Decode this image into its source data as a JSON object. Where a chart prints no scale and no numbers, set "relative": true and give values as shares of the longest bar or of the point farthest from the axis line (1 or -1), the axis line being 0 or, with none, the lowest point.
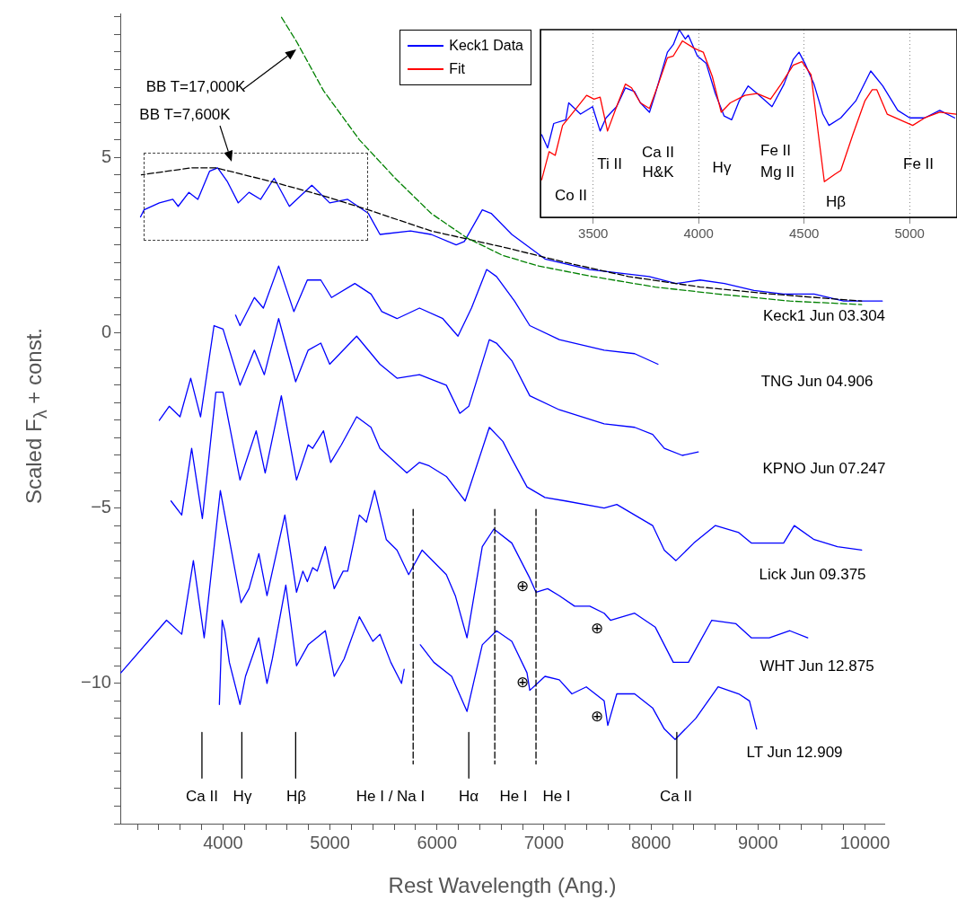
{
  "chart_data": [
    {
      "type": "line",
      "xlabel": "Rest Wavelength (Ang.)",
      "ylabel": "Scaled F$_{λ}$ + const.",
      "xlim": [
        3040,
        10180
      ],
      "ylim": [
        -14,
        9.1
      ],
      "xticks": [
        {
          "value": 3200,
          "label": null
        },
        {
          "value": 3400,
          "label": null
        },
        {
          "value": 3600,
          "label": null
        },
        {
          "value": 3800,
          "label": null
        },
        4000,
        {
          "value": 4200,
          "label": null
        },
        {
          "value": 4400,
          "label": null
        },
        {
          "value": 4600,
          "label": null
        },
        {
          "value": 4800,
          "label": null
        },
        5000,
        {
          "value": 5200,
          "label": null
        },
        {
          "value": 5400,
          "label": null
        },
        {
          "value": 5600,
          "label": null
        },
        {
          "value": 5800,
          "label": null
        },
        6000,
        {
          "value": 6200,
          "label": null
        },
        {
          "value": 6400,
          "label": null
        },
        {
          "value": 6600,
          "label": null
        },
        {
          "value": 6800,
          "label": null
        },
        7000,
        {
          "value": 7200,
          "label": null
        },
        {
          "value": 7400,
          "label": null
        },
        {
          "value": 7600,
          "label": null
        },
        {
          "value": 7800,
          "label": null
        },
        8000,
        {
          "value": 8200,
          "label": null
        },
        {
          "value": 8400,
          "label": null
        },
        {
          "value": 8600,
          "label": null
        },
        {
          "value": 8800,
          "label": null
        },
        9000,
        {
          "value": 9200,
          "label": null
        },
        {
          "value": 9400,
          "label": null
        },
        {
          "value": 9600,
          "label": null
        },
        {
          "value": 9800,
          "label": null
        },
        10000
      ],
      "yticks": [
        {
          "value": -14,
          "label": null
        },
        {
          "value": -13.5,
          "label": null
        },
        {
          "value": -13,
          "label": null
        },
        {
          "value": -12.5,
          "label": null
        },
        {
          "value": -12,
          "label": null
        },
        {
          "value": -11.5,
          "label": null
        },
        {
          "value": -11,
          "label": null
        },
        {
          "value": -10.5,
          "label": null
        },
        {
          "value": -10,
          "label": "−10"
        },
        {
          "value": -9.5,
          "label": null
        },
        {
          "value": -9,
          "label": null
        },
        {
          "value": -8.5,
          "label": null
        },
        {
          "value": -8,
          "label": null
        },
        {
          "value": -7.5,
          "label": null
        },
        {
          "value": -7,
          "label": null
        },
        {
          "value": -6.5,
          "label": null
        },
        {
          "value": -6,
          "label": null
        },
        {
          "value": -5.5,
          "label": null
        },
        {
          "value": -5,
          "label": "−5"
        },
        {
          "value": -4.5,
          "label": null
        },
        {
          "value": -4,
          "label": null
        },
        {
          "value": -3.5,
          "label": null
        },
        {
          "value": -3,
          "label": null
        },
        {
          "value": -2.5,
          "label": null
        },
        {
          "value": -2,
          "label": null
        },
        {
          "value": -1.5,
          "label": null
        },
        {
          "value": -1,
          "label": null
        },
        {
          "value": -0.5,
          "label": null
        },
        0,
        {
          "value": 0.5,
          "label": null
        },
        {
          "value": 1,
          "label": null
        },
        {
          "value": 1.5,
          "label": null
        },
        {
          "value": 2,
          "label": null
        },
        {
          "value": 2.5,
          "label": null
        },
        {
          "value": 3,
          "label": null
        },
        {
          "value": 3.5,
          "label": null
        },
        {
          "value": 4,
          "label": null
        },
        {
          "value": 4.5,
          "label": null
        },
        5,
        {
          "value": 5.5,
          "label": null
        },
        {
          "value": 6,
          "label": null
        },
        {
          "value": 6.5,
          "label": null
        },
        {
          "value": 7,
          "label": null
        },
        {
          "value": 7.5,
          "label": null
        },
        {
          "value": 8,
          "label": null
        },
        {
          "value": 8.5,
          "label": null
        },
        {
          "value": 9,
          "label": null
        }
      ],
      "series": [
        {
          "color": "#0000ff",
          "x": [
            3229,
            3262,
            3405,
            3531,
            3581,
            3681,
            3765,
            3874,
            3950,
            4042,
            4142,
            4243,
            4352,
            4478,
            4620,
            4830,
            4997,
            5165,
            5358,
            5467,
            5752,
            5945,
            6179,
            6255,
            6423,
            6506,
            6699,
            7009,
            7428,
            7982,
            8233,
            8459,
            8686,
            8962,
            9239,
            9524,
            9800,
            10161
          ],
          "values": [
            3.3,
            3.5,
            3.7,
            3.8,
            3.6,
            4.0,
            3.8,
            4.6,
            4.7,
            4.3,
            3.7,
            4.0,
            3.8,
            4.4,
            3.6,
            4.2,
            3.7,
            3.8,
            3.4,
            2.8,
            2.9,
            2.8,
            2.5,
            2.6,
            3.5,
            3.4,
            2.8,
            2.1,
            1.8,
            1.6,
            1.4,
            1.5,
            1.4,
            1.2,
            1.1,
            1.1,
            0.9,
            0.9
          ]
        },
        {
          "color": "#0000ff",
          "x": [
            4117,
            4159,
            4293,
            4377,
            4520,
            4662,
            4788,
            4914,
            5014,
            5232,
            5383,
            5484,
            5626,
            5836,
            6054,
            6196,
            6322,
            6464,
            6556,
            6724,
            6867,
            7143,
            7562,
            7847,
            8065
          ],
          "values": [
            0.5,
            0.2,
            1.0,
            0.7,
            1.9,
            0.6,
            1.5,
            1.5,
            1.0,
            1.4,
            1.1,
            0.6,
            0.4,
            0.7,
            0.4,
            -0.1,
            0.7,
            1.8,
            1.6,
            0.9,
            0.2,
            -0.2,
            -0.5,
            -0.6,
            -0.9
          ]
        },
        {
          "color": "#0000ff",
          "x": [
            3405,
            3497,
            3598,
            3698,
            3790,
            3916,
            4000,
            4159,
            4293,
            4386,
            4520,
            4679,
            4796,
            4914,
            4997,
            5249,
            5467,
            5626,
            5836,
            6087,
            6213,
            6297,
            6489,
            6556,
            6699,
            6867,
            7143,
            7562,
            7847,
            8015,
            8124,
            8292,
            8442
          ],
          "values": [
            -2.5,
            -2.1,
            -2.4,
            -1.3,
            -2.4,
            0.2,
            0.1,
            -1.5,
            -0.5,
            -1.2,
            0.4,
            -1.4,
            -0.5,
            -0.3,
            -0.9,
            -0.1,
            -0.9,
            -1.3,
            -1.2,
            -1.5,
            -2.3,
            -2.1,
            -0.2,
            -0.3,
            -0.8,
            -1.8,
            -2.2,
            -2.6,
            -2.7,
            -2.9,
            -3.3,
            -3.5,
            -3.4
          ]
        },
        {
          "color": "#0000ff",
          "x": [
            3514,
            3614,
            3707,
            3807,
            3933,
            4000,
            4159,
            4310,
            4394,
            4545,
            4687,
            4796,
            4838,
            4939,
            5006,
            5106,
            5249,
            5383,
            5467,
            5718,
            5836,
            5928,
            6087,
            6263,
            6489,
            6615,
            6699,
            6841,
            7009,
            7202,
            7562,
            7680,
            8015,
            8124,
            8233,
            8400,
            8602,
            8820,
            8937,
            9239,
            9339,
            9524,
            9742,
            9968
          ],
          "values": [
            -4.8,
            -5.2,
            -3.3,
            -5.3,
            -1.7,
            -1.7,
            -4.2,
            -2.8,
            -4.0,
            -1.8,
            -4.2,
            -3.2,
            -3.3,
            -2.8,
            -3.7,
            -3.2,
            -2.4,
            -2.7,
            -3.3,
            -4.0,
            -3.7,
            -3.8,
            -4.1,
            -4.8,
            -2.7,
            -3.1,
            -3.6,
            -4.4,
            -4.7,
            -4.8,
            -5.0,
            -4.9,
            -5.5,
            -6.2,
            -6.5,
            -6.0,
            -5.5,
            -5.7,
            -6.0,
            -6.0,
            -5.5,
            -5.9,
            -6.1,
            -6.2
          ]
        },
        {
          "color": "#0000ff",
          "x": [
            3045,
            3472,
            3614,
            3723,
            3824,
            3975,
            4168,
            4243,
            4335,
            4411,
            4578,
            4687,
            4746,
            4788,
            4838,
            4880,
            4956,
            5039,
            5123,
            5165,
            5274,
            5341,
            5417,
            5526,
            5626,
            5735,
            5861,
            6087,
            6171,
            6280,
            6423,
            6531,
            6699,
            6867,
            6925,
            7034,
            7143,
            7286,
            7428,
            7562,
            7621,
            7847,
            8040,
            8208,
            8350,
            8568,
            8794,
            8937,
            9105,
            9297,
            9465
          ],
          "values": [
            -9.7,
            -8.2,
            -8.6,
            -6.5,
            -8.7,
            -4.5,
            -7.7,
            -7.3,
            -6.3,
            -7.5,
            -5.2,
            -7.4,
            -6.8,
            -7.1,
            -6.7,
            -6.8,
            -6.1,
            -7.3,
            -6.8,
            -6.8,
            -5.2,
            -5.4,
            -4.5,
            -5.9,
            -6.2,
            -6.9,
            -6.2,
            -6.9,
            -7.5,
            -8.7,
            -6.1,
            -5.6,
            -6.0,
            -7.0,
            -7.4,
            -7.3,
            -7.5,
            -7.8,
            -7.8,
            -8.0,
            -8.2,
            -8.0,
            -8.4,
            -9.4,
            -9.4,
            -8.2,
            -8.3,
            -8.7,
            -8.7,
            -8.5,
            -8.7
          ]
        },
        {
          "color": "#0000ff",
          "x": [
            3966,
            3992,
            4017,
            4059,
            4159,
            4210,
            4335,
            4411,
            4461,
            4587,
            4687,
            4796,
            4956,
            5039,
            5132,
            5274,
            5400,
            5467,
            5568,
            5668,
            5693,
            5760,
            5844,
            5970,
            6137,
            6280,
            6423,
            6556,
            6699,
            6841,
            6867,
            7009,
            7143,
            7261,
            7395,
            7562,
            7596,
            7680,
            7847,
            8015,
            8124,
            8225,
            8418,
            8627,
            8820,
            8920,
            8987
          ],
          "values": [
            -10.6,
            -8.2,
            -8.5,
            -9.4,
            -10.6,
            -9.8,
            -8.7,
            -10.0,
            -9.3,
            -7.2,
            -9.5,
            -8.9,
            -8.5,
            -9.8,
            -9.3,
            -8.1,
            -8.8,
            -8.6,
            -9.4,
            -10.0,
            -9.6,
            null,
            -8.9,
            -9.4,
            -9.8,
            -10.8,
            -8.9,
            -8.5,
            -8.8,
            -9.7,
            -10.2,
            -9.8,
            -9.9,
            -10.3,
            -10.1,
            -10.5,
            -11.2,
            -10.3,
            -10.3,
            -10.7,
            -11.3,
            -11.6,
            -11.0,
            -10.1,
            -10.3,
            -10.5,
            -11.3
          ]
        },
        {
          "color": "#000000",
          "line_style": "dashed",
          "x": [
            3237,
            3707,
            3933,
            4461,
            4939,
            5358,
            5945,
            6674,
            7202,
            7789,
            8459,
            9130,
            9968
          ],
          "values": [
            4.5,
            4.7,
            4.7,
            4.3,
            3.9,
            3.5,
            2.9,
            2.4,
            2.0,
            1.6,
            1.3,
            1.1,
            0.9
          ]
        },
        {
          "color": "#008000",
          "line_style": "dashed",
          "x": [
            4545,
            4687,
            4939,
            5274,
            5610,
            5945,
            6280,
            6615,
            6950,
            7453,
            8040,
            8627,
            9297,
            9968
          ],
          "values": [
            9.0,
            8.3,
            6.9,
            5.5,
            4.4,
            3.4,
            2.7,
            2.2,
            1.9,
            1.6,
            1.3,
            1.1,
            0.9,
            0.8
          ]
        },
        {
          "color": "#000000",
          "x": [
            3803,
            3803
          ],
          "values": [
            -11.4,
            -12.7
          ]
        },
        {
          "color": "#000000",
          "x": [
            4176,
            4176
          ],
          "values": [
            -11.4,
            -12.7
          ]
        },
        {
          "color": "#000000",
          "x": [
            4679,
            4679
          ],
          "values": [
            -11.4,
            -12.7
          ]
        },
        {
          "color": "#000000",
          "x": [
            6297,
            6297
          ],
          "values": [
            -11.4,
            -12.7
          ]
        },
        {
          "color": "#000000",
          "x": [
            8241,
            8241
          ],
          "values": [
            -11.4,
            -12.7
          ]
        },
        {
          "color": "#000000",
          "line_style": "dashed",
          "x": [
            5777,
            5777
          ],
          "values": [
            -5.0,
            -12.3
          ]
        },
        {
          "color": "#000000",
          "line_style": "dashed",
          "x": [
            6540,
            6540
          ],
          "values": [
            -5.0,
            -12.3
          ]
        },
        {
          "color": "#000000",
          "line_style": "dashed",
          "x": [
            6925,
            6925
          ],
          "values": [
            -5.0,
            -12.3
          ]
        }
      ],
      "annotations": [
        "BB T=17,000K",
        "BB T=7,600K",
        "Keck1 Jun 03.304",
        "TNG Jun 04.906",
        "KPNO Jun 07.247",
        "Lick Jun 09.375",
        "WHT Jun 12.875",
        "LT Jun 12.909",
        "⊕",
        "⊕",
        "⊕",
        "⊕",
        "Ca II",
        "Hγ",
        "Hβ",
        "He I / Na I",
        "Hα",
        "He I",
        "He I",
        "Ca II"
      ]
    },
    {
      "type": "line",
      "relative": true,
      "xlim": [
        3250,
        5225
      ],
      "xticks": [
        3500,
        4000,
        4500,
        5000
      ],
      "grid": "x",
      "legend": "left",
      "series": [
        {
          "name": "Keck1 Data",
          "color": "#0000ff",
          "x": [
            3256,
            3284,
            3313,
            3370,
            3384,
            3440,
            3497,
            3533,
            3561,
            3611,
            3653,
            3696,
            3724,
            3767,
            3795,
            3852,
            3880,
            3908,
            3937,
            3951,
            3994,
            4036,
            4079,
            4121,
            4157,
            4192,
            4235,
            4277,
            4348,
            4405,
            4448,
            4476,
            4504,
            4547,
            4589,
            4618,
            4674,
            4745,
            4816,
            4873,
            4944,
            5001,
            5072,
            5143,
            5214
          ],
          "values": [
            0.44,
            0.37,
            0.5,
            0.52,
            0.61,
            0.55,
            0.59,
            0.46,
            0.53,
            0.59,
            0.69,
            0.67,
            0.61,
            0.56,
            0.66,
            0.88,
            0.92,
            1.0,
            0.95,
            0.97,
            0.86,
            0.82,
            0.66,
            0.54,
            0.52,
            0.62,
            0.7,
            0.66,
            0.59,
            0.71,
            0.84,
            0.88,
            0.82,
            0.71,
            0.55,
            0.49,
            0.53,
            0.62,
            0.78,
            0.7,
            0.57,
            0.53,
            0.53,
            0.57,
            0.53
          ]
        },
        {
          "name": "Fit",
          "color": "#ff0000",
          "x": [
            3256,
            3291,
            3320,
            3355,
            3398,
            3469,
            3504,
            3533,
            3568,
            3611,
            3653,
            3682,
            3724,
            3767,
            3809,
            3852,
            3880,
            3923,
            3980,
            4022,
            4065,
            4107,
            4150,
            4220,
            4277,
            4341,
            4391,
            4448,
            4490,
            4533,
            4568,
            4596,
            4646,
            4674,
            4731,
            4788,
            4823,
            4845,
            4894,
            5015,
            5072,
            5143,
            5221
          ],
          "values": [
            0.2,
            0.35,
            0.33,
            0.49,
            0.55,
            0.65,
            0.63,
            0.64,
            0.46,
            0.59,
            0.71,
            0.69,
            0.61,
            0.58,
            0.71,
            0.85,
            0.86,
            0.94,
            0.9,
            0.88,
            0.75,
            0.56,
            0.61,
            0.65,
            0.66,
            0.63,
            0.71,
            0.81,
            0.83,
            0.76,
            0.44,
            0.19,
            0.23,
            0.25,
            0.44,
            0.62,
            0.68,
            0.68,
            0.55,
            0.49,
            0.53,
            0.56,
            0.55
          ]
        }
      ],
      "annotations": [
        "Co II",
        "Ti II",
        "Ca II",
        "H&K",
        "Hγ",
        "Fe II",
        "Mg II",
        "Hβ",
        "Fe II"
      ]
    }
  ]
}
